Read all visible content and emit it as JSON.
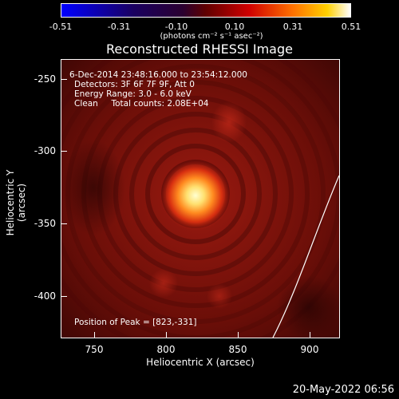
{
  "colorbar": {
    "ticks": [
      "-0.51",
      "-0.31",
      "-0.10",
      "0.10",
      "0.31",
      "0.51"
    ],
    "units": "(photons cm⁻² s⁻¹ asec⁻²)"
  },
  "title": "Reconstructed RHESSI Image",
  "info": {
    "time": "6-Dec-2014 23:48:16.000 to 23:54:12.000",
    "detectors": "Detectors: 3F 6F 7F 9F, Att 0",
    "energy": "Energy Range: 3.0 - 6.0 keV",
    "clean": "Clean     Total counts: 2.08E+04",
    "peak": "Position of Peak = [823,-331]"
  },
  "axes": {
    "xlabel": "Heliocentric X (arcsec)",
    "ylabel": "Heliocentric Y (arcsec)",
    "xticks": [
      "750",
      "800",
      "850",
      "900"
    ],
    "yticks": [
      "-250",
      "-300",
      "-350",
      "-400"
    ]
  },
  "datestamp": "20-May-2022 06:56"
}
